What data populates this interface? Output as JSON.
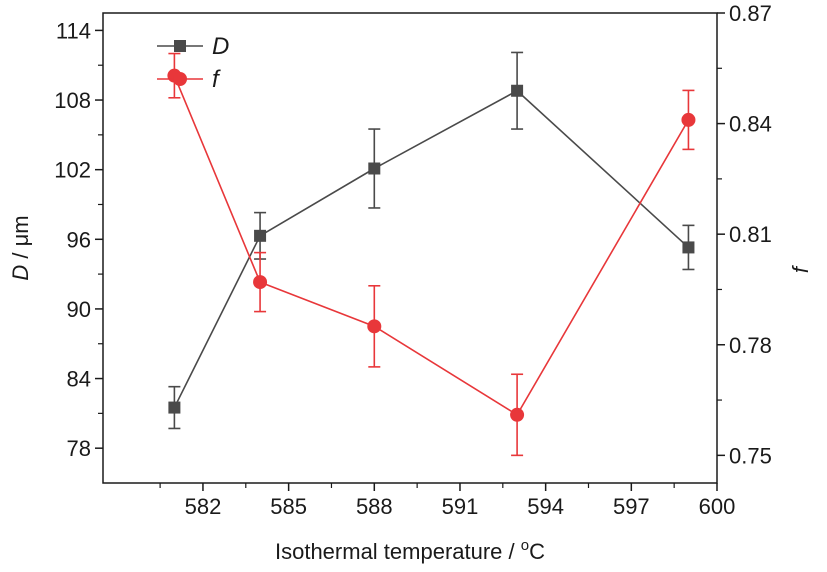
{
  "chart_data": {
    "type": "line",
    "xlabel": "Isothermal temperature / °C",
    "xlabel_main": "Isothermal temperature / ",
    "xlabel_sup": "o",
    "xlabel_unit": "C",
    "ylabel_left_var": "D",
    "ylabel_left_unit": " / μm",
    "ylabel_right": "f",
    "xlim": [
      578.5,
      600
    ],
    "ylim_left": [
      75,
      115.5
    ],
    "ylim_right": [
      0.7425,
      0.87
    ],
    "x_ticks": [
      582,
      585,
      588,
      591,
      594,
      597,
      600
    ],
    "y_left_ticks": [
      78,
      84,
      90,
      96,
      102,
      108,
      114
    ],
    "y_right_ticks": [
      "0.75",
      "0.78",
      "0.81",
      "0.84",
      "0.87"
    ],
    "y_right_tick_values": [
      0.75,
      0.78,
      0.81,
      0.84,
      0.87
    ],
    "legend_position": "top-left",
    "series": [
      {
        "name": "D",
        "axis": "left",
        "marker": "square",
        "color": "#4a4a4a",
        "x": [
          581,
          584,
          588,
          593,
          599
        ],
        "y": [
          81.5,
          96.3,
          102.1,
          108.8,
          95.3
        ],
        "err": [
          1.8,
          2.0,
          3.4,
          3.3,
          1.9
        ]
      },
      {
        "name": "f",
        "axis": "right",
        "marker": "circle",
        "color": "#e8373a",
        "x": [
          581,
          584,
          588,
          593,
          599
        ],
        "y": [
          0.853,
          0.797,
          0.785,
          0.761,
          0.841
        ],
        "err": [
          0.006,
          0.008,
          0.011,
          0.011,
          0.008
        ]
      }
    ]
  }
}
